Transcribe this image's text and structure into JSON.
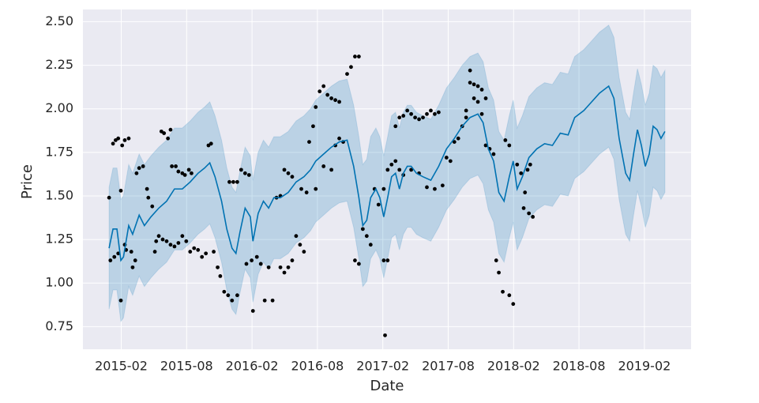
{
  "chart_data": {
    "type": "line",
    "xlabel": "Date",
    "ylabel": "Price",
    "background": "#eaeaf2",
    "grid": true,
    "xlim": [
      2014.79,
      2019.44
    ],
    "ylim": [
      0.62,
      2.57
    ],
    "xticks": [
      {
        "value": 2015.083,
        "label": "2015-02"
      },
      {
        "value": 2015.583,
        "label": "2015-08"
      },
      {
        "value": 2016.083,
        "label": "2016-02"
      },
      {
        "value": 2016.583,
        "label": "2016-08"
      },
      {
        "value": 2017.083,
        "label": "2017-02"
      },
      {
        "value": 2017.583,
        "label": "2017-08"
      },
      {
        "value": 2018.083,
        "label": "2018-02"
      },
      {
        "value": 2018.583,
        "label": "2018-08"
      },
      {
        "value": 2019.083,
        "label": "2019-02"
      }
    ],
    "yticks": [
      0.75,
      {
        "value": 1.0,
        "label": "1.00"
      },
      1.25,
      {
        "value": 1.5,
        "label": "1.50"
      },
      1.75,
      {
        "value": 2.0,
        "label": "2.00"
      },
      2.25,
      {
        "value": 2.5,
        "label": "2.50"
      }
    ],
    "forecast": {
      "color": "#0072b2",
      "x": [
        2014.99,
        2015.02,
        2015.05,
        2015.08,
        2015.1,
        2015.14,
        2015.17,
        2015.22,
        2015.26,
        2015.31,
        2015.37,
        2015.43,
        2015.49,
        2015.55,
        2015.61,
        2015.67,
        2015.72,
        2015.76,
        2015.8,
        2015.85,
        2015.89,
        2015.93,
        2015.96,
        2015.99,
        2016.03,
        2016.07,
        2016.09,
        2016.13,
        2016.17,
        2016.21,
        2016.25,
        2016.3,
        2016.36,
        2016.42,
        2016.48,
        2016.53,
        2016.57,
        2016.63,
        2016.69,
        2016.75,
        2016.81,
        2016.86,
        2016.9,
        2016.93,
        2016.96,
        2016.99,
        2017.03,
        2017.06,
        2017.09,
        2017.12,
        2017.15,
        2017.18,
        2017.21,
        2017.24,
        2017.27,
        2017.3,
        2017.34,
        2017.39,
        2017.45,
        2017.51,
        2017.57,
        2017.63,
        2017.69,
        2017.75,
        2017.81,
        2017.85,
        2017.89,
        2017.93,
        2017.97,
        2018.01,
        2018.05,
        2018.08,
        2018.11,
        2018.15,
        2018.2,
        2018.26,
        2018.32,
        2018.38,
        2018.44,
        2018.5,
        2018.55,
        2018.62,
        2018.68,
        2018.74,
        2018.81,
        2018.85,
        2018.89,
        2018.94,
        2018.97,
        2019.0,
        2019.03,
        2019.06,
        2019.09,
        2019.12,
        2019.15,
        2019.18,
        2019.21,
        2019.24
      ],
      "values": [
        1.2,
        1.31,
        1.31,
        1.13,
        1.15,
        1.33,
        1.28,
        1.39,
        1.33,
        1.38,
        1.43,
        1.47,
        1.54,
        1.54,
        1.58,
        1.63,
        1.66,
        1.69,
        1.61,
        1.47,
        1.31,
        1.2,
        1.17,
        1.29,
        1.43,
        1.38,
        1.24,
        1.4,
        1.47,
        1.43,
        1.49,
        1.49,
        1.52,
        1.58,
        1.61,
        1.65,
        1.7,
        1.74,
        1.78,
        1.81,
        1.82,
        1.67,
        1.49,
        1.33,
        1.36,
        1.49,
        1.54,
        1.49,
        1.38,
        1.49,
        1.61,
        1.63,
        1.54,
        1.63,
        1.67,
        1.67,
        1.63,
        1.61,
        1.59,
        1.67,
        1.77,
        1.83,
        1.9,
        1.95,
        1.97,
        1.92,
        1.77,
        1.7,
        1.52,
        1.47,
        1.61,
        1.7,
        1.54,
        1.61,
        1.72,
        1.77,
        1.8,
        1.79,
        1.86,
        1.85,
        1.95,
        1.99,
        2.04,
        2.09,
        2.13,
        2.06,
        1.83,
        1.63,
        1.59,
        1.74,
        1.88,
        1.79,
        1.67,
        1.74,
        1.9,
        1.88,
        1.83,
        1.87
      ],
      "upper": [
        1.55,
        1.66,
        1.66,
        1.48,
        1.5,
        1.68,
        1.63,
        1.74,
        1.68,
        1.73,
        1.78,
        1.82,
        1.89,
        1.89,
        1.93,
        1.98,
        2.01,
        2.04,
        1.96,
        1.82,
        1.66,
        1.55,
        1.52,
        1.64,
        1.78,
        1.73,
        1.59,
        1.75,
        1.82,
        1.78,
        1.84,
        1.84,
        1.87,
        1.93,
        1.96,
        2.0,
        2.05,
        2.09,
        2.13,
        2.16,
        2.17,
        2.02,
        1.84,
        1.68,
        1.71,
        1.84,
        1.89,
        1.84,
        1.73,
        1.84,
        1.96,
        1.98,
        1.89,
        1.98,
        2.02,
        2.02,
        1.98,
        1.96,
        1.94,
        2.02,
        2.12,
        2.18,
        2.25,
        2.3,
        2.32,
        2.27,
        2.12,
        2.05,
        1.87,
        1.82,
        1.96,
        2.05,
        1.89,
        1.96,
        2.07,
        2.12,
        2.15,
        2.14,
        2.21,
        2.2,
        2.3,
        2.34,
        2.39,
        2.44,
        2.48,
        2.41,
        2.18,
        1.98,
        1.94,
        2.09,
        2.23,
        2.14,
        2.02,
        2.09,
        2.25,
        2.23,
        2.18,
        2.22
      ],
      "lower": [
        0.85,
        0.96,
        0.96,
        0.78,
        0.8,
        0.98,
        0.93,
        1.04,
        0.98,
        1.03,
        1.08,
        1.12,
        1.19,
        1.19,
        1.23,
        1.28,
        1.31,
        1.34,
        1.26,
        1.12,
        0.96,
        0.85,
        0.82,
        0.94,
        1.08,
        1.03,
        0.89,
        1.05,
        1.12,
        1.08,
        1.14,
        1.14,
        1.17,
        1.23,
        1.26,
        1.3,
        1.35,
        1.39,
        1.43,
        1.46,
        1.47,
        1.32,
        1.14,
        0.98,
        1.01,
        1.14,
        1.19,
        1.14,
        1.03,
        1.14,
        1.26,
        1.28,
        1.19,
        1.28,
        1.32,
        1.32,
        1.28,
        1.26,
        1.24,
        1.32,
        1.42,
        1.48,
        1.55,
        1.6,
        1.62,
        1.57,
        1.42,
        1.35,
        1.17,
        1.12,
        1.26,
        1.35,
        1.19,
        1.26,
        1.37,
        1.42,
        1.45,
        1.44,
        1.51,
        1.5,
        1.6,
        1.64,
        1.69,
        1.74,
        1.78,
        1.71,
        1.48,
        1.28,
        1.24,
        1.39,
        1.53,
        1.44,
        1.32,
        1.39,
        1.55,
        1.53,
        1.48,
        1.52
      ]
    },
    "observed": {
      "color": "#000000",
      "x": [
        2014.99,
        2015.02,
        2015.04,
        2015.06,
        2015.0,
        2015.03,
        2015.06,
        2015.08,
        2015.09,
        2015.11,
        2015.14,
        2015.08,
        2015.11,
        2015.12,
        2015.16,
        2015.19,
        2015.2,
        2015.22,
        2015.25,
        2015.17,
        2015.28,
        2015.29,
        2015.32,
        2015.34,
        2015.35,
        2015.37,
        2015.39,
        2015.41,
        2015.44,
        2015.46,
        2015.47,
        2015.5,
        2015.52,
        2015.55,
        2015.57,
        2015.6,
        2015.62,
        2015.4,
        2015.43,
        2015.46,
        2015.49,
        2015.52,
        2015.55,
        2015.58,
        2015.61,
        2015.64,
        2015.67,
        2015.7,
        2015.73,
        2015.75,
        2015.77,
        2015.79,
        2015.82,
        2015.84,
        2015.87,
        2015.91,
        2015.94,
        2015.97,
        2015.9,
        2015.93,
        2015.97,
        2016.0,
        2016.03,
        2016.06,
        2016.04,
        2016.08,
        2016.09,
        2016.12,
        2016.15,
        2016.18,
        2016.21,
        2016.24,
        2016.27,
        2016.3,
        2016.33,
        2016.36,
        2016.39,
        2016.3,
        2016.33,
        2016.36,
        2016.39,
        2016.42,
        2016.45,
        2016.48,
        2016.46,
        2016.5,
        2016.52,
        2016.55,
        2016.57,
        2016.6,
        2016.63,
        2016.66,
        2016.69,
        2016.72,
        2016.75,
        2016.57,
        2016.63,
        2016.69,
        2016.72,
        2016.75,
        2016.78,
        2016.81,
        2016.84,
        2016.87,
        2016.9,
        2016.87,
        2016.9,
        2016.93,
        2016.96,
        2016.99,
        2017.02,
        2017.05,
        2017.09,
        2017.1,
        2017.12,
        2017.09,
        2017.12,
        2017.15,
        2017.18,
        2017.21,
        2017.24,
        2017.18,
        2017.21,
        2017.24,
        2017.27,
        2017.3,
        2017.33,
        2017.36,
        2017.39,
        2017.42,
        2017.45,
        2017.48,
        2017.51,
        2017.3,
        2017.36,
        2017.42,
        2017.48,
        2017.54,
        2017.57,
        2017.6,
        2017.63,
        2017.66,
        2017.69,
        2017.72,
        2017.75,
        2017.78,
        2017.81,
        2017.84,
        2017.87,
        2017.72,
        2017.75,
        2017.78,
        2017.81,
        2017.84,
        2017.87,
        2017.9,
        2017.93,
        2017.95,
        2017.97,
        2018.0,
        2018.02,
        2018.05,
        2018.05,
        2018.08,
        2018.11,
        2018.14,
        2018.17,
        2018.2,
        2018.23,
        2018.16,
        2018.19,
        2018.21
      ],
      "values": [
        1.49,
        1.8,
        1.82,
        1.83,
        1.13,
        1.15,
        1.17,
        0.9,
        1.79,
        1.82,
        1.83,
        1.53,
        1.22,
        1.19,
        1.18,
        1.13,
        1.63,
        1.66,
        1.67,
        1.09,
        1.54,
        1.49,
        1.44,
        1.18,
        1.24,
        1.27,
        1.87,
        1.86,
        1.83,
        1.88,
        1.67,
        1.67,
        1.64,
        1.63,
        1.62,
        1.65,
        1.63,
        1.25,
        1.24,
        1.22,
        1.21,
        1.23,
        1.27,
        1.24,
        1.18,
        1.2,
        1.19,
        1.15,
        1.17,
        1.79,
        1.8,
        1.18,
        1.09,
        1.04,
        0.95,
        1.58,
        1.58,
        1.58,
        0.93,
        0.9,
        0.93,
        1.65,
        1.63,
        1.62,
        1.11,
        1.13,
        0.84,
        1.15,
        1.11,
        0.9,
        1.09,
        0.9,
        1.49,
        1.5,
        1.65,
        1.63,
        1.61,
        1.09,
        1.06,
        1.09,
        1.13,
        1.27,
        1.22,
        1.18,
        1.54,
        1.52,
        1.81,
        1.9,
        2.01,
        2.1,
        2.13,
        2.08,
        2.06,
        2.05,
        2.04,
        1.54,
        1.67,
        1.65,
        1.79,
        1.83,
        1.81,
        2.2,
        2.24,
        2.3,
        2.3,
        1.13,
        1.11,
        1.31,
        1.27,
        1.22,
        1.54,
        1.45,
        1.13,
        0.7,
        1.13,
        1.54,
        1.65,
        1.68,
        1.7,
        1.65,
        1.62,
        1.9,
        1.95,
        1.96,
        1.99,
        1.97,
        1.95,
        1.94,
        1.95,
        1.97,
        1.99,
        1.97,
        1.98,
        1.65,
        1.63,
        1.55,
        1.54,
        1.56,
        1.72,
        1.7,
        1.81,
        1.83,
        1.9,
        1.95,
        2.15,
        2.14,
        2.13,
        2.11,
        2.06,
        1.99,
        2.22,
        2.06,
        2.04,
        1.97,
        1.79,
        1.77,
        1.74,
        1.13,
        1.06,
        0.95,
        1.82,
        1.79,
        0.93,
        0.88,
        1.68,
        1.63,
        1.52,
        1.4,
        1.38,
        1.43,
        1.65,
        1.68
      ]
    }
  }
}
